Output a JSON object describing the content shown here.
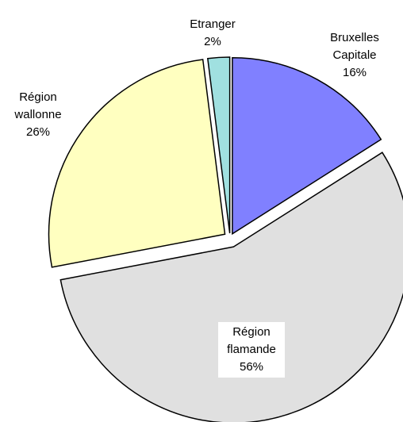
{
  "chart_data": {
    "type": "pie",
    "categories": [
      "Bruxelles Capitale",
      "Région flamande",
      "Région wallonne",
      "Etranger"
    ],
    "values": [
      16,
      56,
      26,
      2
    ],
    "value_labels": [
      "16%",
      "56%",
      "26%",
      "2%"
    ],
    "colors": [
      "#8080ff",
      "#e0e0e0",
      "#ffffc0",
      "#a0e0e0"
    ]
  }
}
